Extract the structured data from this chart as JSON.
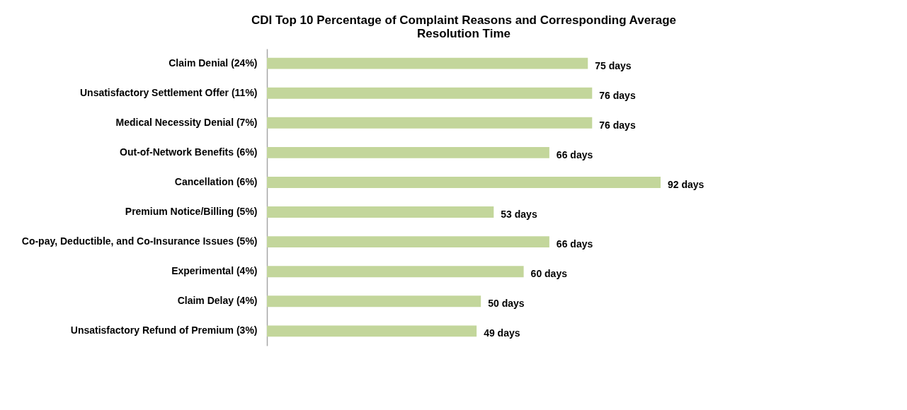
{
  "chart_data": {
    "type": "bar",
    "orientation": "horizontal",
    "title": "CDI Top 10 Percentage of Complaint Reasons and Corresponding Average Resolution Time",
    "categories": [
      "Claim Denial (24%)",
      "Unsatisfactory Settlement Offer (11%)",
      "Medical Necessity Denial (7%)",
      "Out-of-Network Benefits (6%)",
      "Cancellation (6%)",
      "Premium Notice/Billing (5%)",
      "Co-pay, Deductible, and Co-Insurance Issues (5%)",
      "Experimental (4%)",
      "Claim Delay (4%)",
      "Unsatisfactory Refund of Premium (3%)"
    ],
    "values": [
      75,
      76,
      76,
      66,
      92,
      53,
      66,
      60,
      50,
      49
    ],
    "value_labels": [
      "75 days",
      "76 days",
      "76 days",
      "66 days",
      "92 days",
      "53 days",
      "66 days",
      "60 days",
      "50 days",
      "49 days"
    ],
    "color": "#c3d69b",
    "grid": false
  }
}
